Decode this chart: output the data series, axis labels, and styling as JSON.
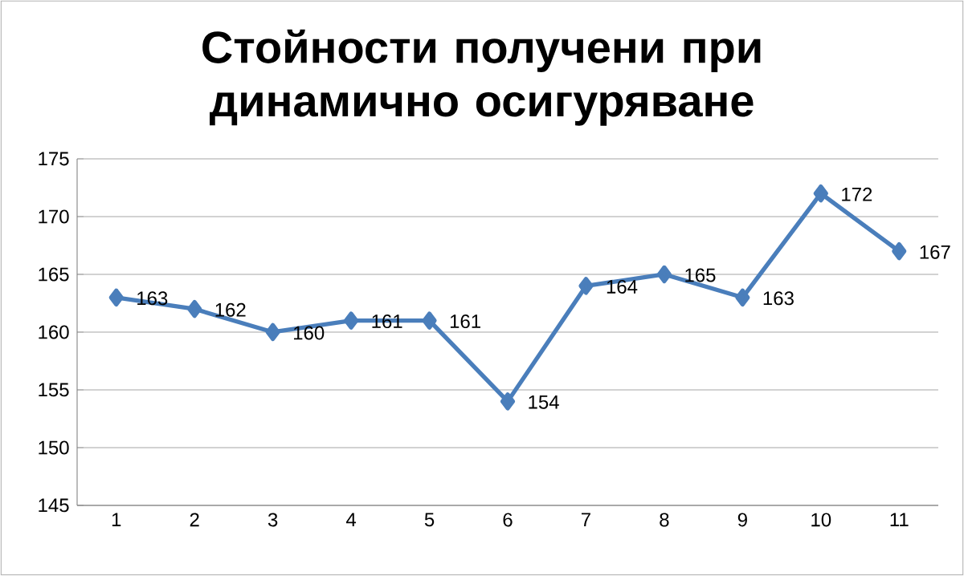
{
  "chart_data": {
    "type": "line",
    "title": "Стойности получени при динамично осигуряване",
    "categories": [
      "1",
      "2",
      "3",
      "4",
      "5",
      "6",
      "7",
      "8",
      "9",
      "10",
      "11"
    ],
    "values": [
      163,
      162,
      160,
      161,
      161,
      154,
      164,
      165,
      163,
      172,
      167
    ],
    "color": "#4a7ebb",
    "marker": "diamond",
    "line_style": "solid",
    "ylim": [
      145,
      175
    ],
    "yticks": [
      145,
      150,
      155,
      160,
      165,
      170,
      175
    ],
    "grid": "y",
    "data_labels": true
  }
}
